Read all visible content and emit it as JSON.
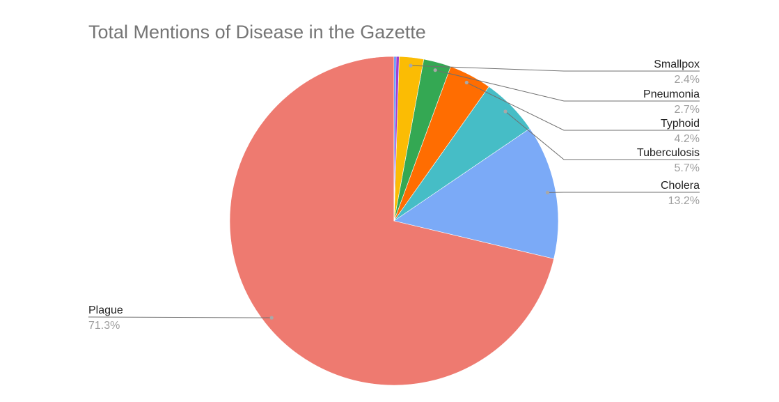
{
  "chart_data": {
    "type": "pie",
    "title": "Total Mentions of Disease in the Gazette",
    "slices": [
      {
        "label": "Plague",
        "value": 71.3,
        "display": "71.3%",
        "color": "#ee7a70"
      },
      {
        "label": "Cholera",
        "value": 13.2,
        "display": "13.2%",
        "color": "#7baaf7"
      },
      {
        "label": "Tuberculosis",
        "value": 5.7,
        "display": "5.7%",
        "color": "#46bdc6"
      },
      {
        "label": "Typhoid",
        "value": 4.2,
        "display": "4.2%",
        "color": "#ff6d01"
      },
      {
        "label": "Pneumonia",
        "value": 2.7,
        "display": "2.7%",
        "color": "#34a853"
      },
      {
        "label": "Smallpox",
        "value": 2.4,
        "display": "2.4%",
        "color": "#fbbc04"
      },
      {
        "label": "",
        "value": 0.3,
        "display": "",
        "color": "#a03ed0"
      },
      {
        "label": "",
        "value": 0.2,
        "display": "",
        "color": "#4285f4"
      }
    ],
    "legend": "none",
    "label_style": "callout"
  }
}
